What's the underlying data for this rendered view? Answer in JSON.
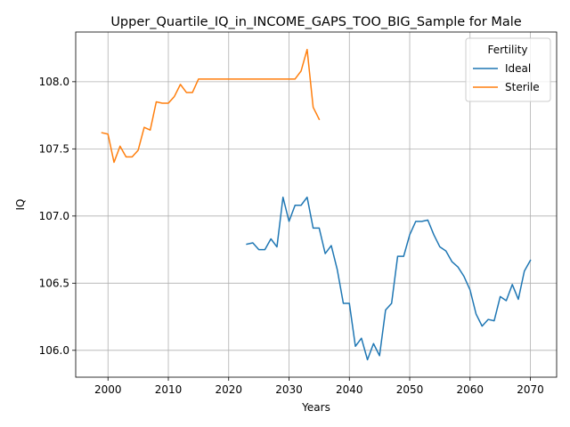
{
  "chart_data": {
    "type": "line",
    "title": "Upper_Quartile_IQ_in_INCOME_GAPS_TOO_BIG_Sample for Male",
    "xlabel": "Years",
    "ylabel": "IQ",
    "xlim": [
      1994.65,
      2074.35
    ],
    "ylim": [
      105.8,
      108.37
    ],
    "xticks": [
      2000,
      2010,
      2020,
      2030,
      2040,
      2050,
      2060,
      2070
    ],
    "yticks": [
      106.0,
      106.5,
      107.0,
      107.5,
      108.0
    ],
    "xtick_labels": [
      "2000",
      "2010",
      "2020",
      "2030",
      "2040",
      "2050",
      "2060",
      "2070"
    ],
    "ytick_labels": [
      "106.0",
      "106.5",
      "107.0",
      "107.5",
      "108.0"
    ],
    "grid": true,
    "legend": {
      "title": "Fertility",
      "placement": "top-right"
    },
    "series": [
      {
        "name": "Ideal",
        "color": "#1f77b4",
        "x": [
          2023,
          2024,
          2025,
          2026,
          2027,
          2028,
          2029,
          2030,
          2031,
          2032,
          2033,
          2034,
          2035,
          2036,
          2037,
          2038,
          2039,
          2040,
          2041,
          2042,
          2043,
          2044,
          2045,
          2046,
          2047,
          2048,
          2049,
          2050,
          2051,
          2052,
          2053,
          2054,
          2055,
          2056,
          2057,
          2058,
          2059,
          2060,
          2061,
          2062,
          2063,
          2064,
          2065,
          2066,
          2067,
          2068,
          2069,
          2070
        ],
        "y": [
          106.79,
          106.8,
          106.75,
          106.75,
          106.83,
          106.77,
          107.14,
          106.96,
          107.08,
          107.08,
          107.14,
          106.91,
          106.91,
          106.72,
          106.78,
          106.6,
          106.35,
          106.35,
          106.03,
          106.09,
          105.93,
          106.05,
          105.96,
          106.3,
          106.35,
          106.7,
          106.7,
          106.86,
          106.96,
          106.96,
          106.97,
          106.86,
          106.77,
          106.74,
          106.66,
          106.62,
          106.55,
          106.45,
          106.27,
          106.18,
          106.23,
          106.22,
          106.4,
          106.37,
          106.49,
          106.38,
          106.59,
          106.67
        ]
      },
      {
        "name": "Sterile",
        "color": "#ff7f0e",
        "x": [
          1999,
          2000,
          2001,
          2002,
          2003,
          2004,
          2005,
          2006,
          2007,
          2008,
          2009,
          2010,
          2011,
          2012,
          2013,
          2014,
          2015,
          2016,
          2017,
          2018,
          2019,
          2020,
          2021,
          2022,
          2023,
          2024,
          2025,
          2026,
          2027,
          2028,
          2029,
          2030,
          2031,
          2032,
          2033,
          2034,
          2035
        ],
        "y": [
          107.62,
          107.61,
          107.4,
          107.52,
          107.44,
          107.44,
          107.49,
          107.66,
          107.64,
          107.85,
          107.84,
          107.84,
          107.89,
          107.98,
          107.92,
          107.92,
          108.02,
          108.02,
          108.02,
          108.02,
          108.02,
          108.02,
          108.02,
          108.02,
          108.02,
          108.02,
          108.02,
          108.02,
          108.02,
          108.02,
          108.02,
          108.02,
          108.02,
          108.08,
          108.24,
          107.81,
          107.72
        ]
      }
    ]
  }
}
